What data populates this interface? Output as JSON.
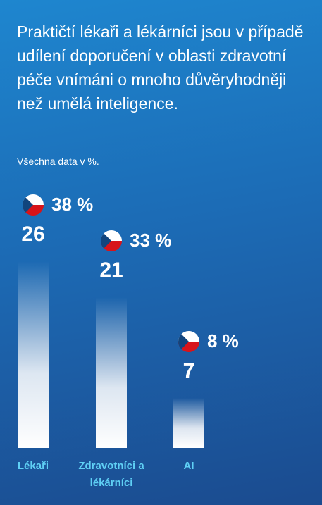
{
  "chart_data": {
    "type": "bar",
    "title": "Praktičtí lékaři a lékárníci jsou v případě udílení doporučení v oblasti zdravotní péče vnímáni o mnoho důvěryhodněji než umělá inteligence.",
    "subtitle": "Všechna data v %.",
    "categories": [
      "Lékaři",
      "Zdravotníci a lékárníci",
      "AI"
    ],
    "series": [
      {
        "values": [
          26,
          21,
          7
        ]
      },
      {
        "values": [
          38,
          33,
          8
        ],
        "value_labels": [
          "38 %",
          "33 %",
          "8 %"
        ]
      }
    ]
  }
}
